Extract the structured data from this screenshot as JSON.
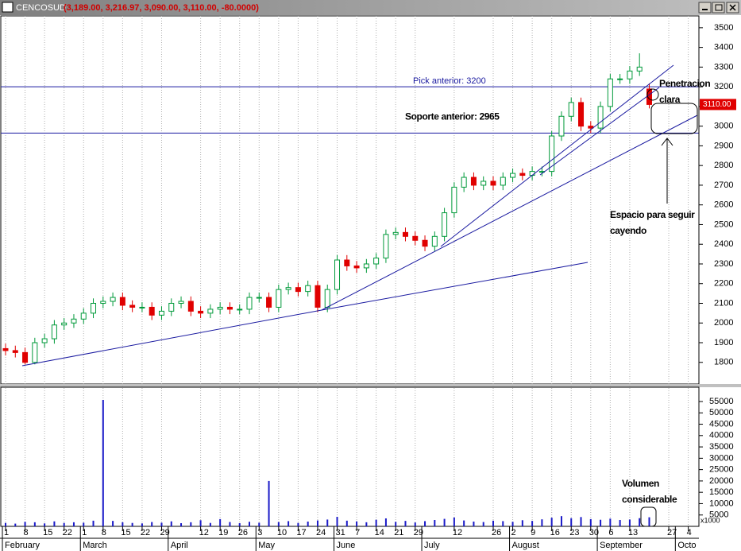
{
  "chart_data": [
    {
      "type": "candlestick",
      "title": "CENCOSUD",
      "subtitle": "(3,189.00, 3,216.97, 3,090.00, 3,110.00, -80.0000)",
      "categories": [
        "1",
        null,
        "8",
        null,
        "15",
        null,
        "22",
        null,
        "1",
        null,
        "8",
        null,
        "15",
        null,
        "22",
        null,
        "29",
        null,
        null,
        null,
        "12",
        null,
        "19",
        null,
        "26",
        null,
        "3",
        null,
        "10",
        null,
        "17",
        null,
        "24",
        null,
        "31",
        null,
        "7",
        null,
        "14",
        null,
        "21",
        null,
        "29",
        null,
        null,
        null,
        "12",
        null,
        null,
        null,
        "26",
        null,
        "2",
        null,
        "9",
        null,
        "16",
        null,
        "23",
        null,
        "30",
        null,
        "6",
        null,
        "13",
        null,
        null,
        null,
        "27",
        null,
        "4",
        null
      ],
      "months": [
        "February",
        null,
        null,
        null,
        null,
        null,
        null,
        null,
        "March",
        null,
        null,
        null,
        null,
        null,
        null,
        null,
        null,
        "April",
        null,
        null,
        null,
        null,
        null,
        null,
        null,
        null,
        "May",
        null,
        null,
        null,
        null,
        null,
        null,
        null,
        "June",
        null,
        null,
        null,
        null,
        null,
        null,
        null,
        null,
        "July",
        null,
        null,
        null,
        null,
        null,
        null,
        null,
        null,
        "August",
        null,
        null,
        null,
        null,
        null,
        null,
        null,
        null,
        "September",
        null,
        null,
        null,
        null,
        null,
        null,
        null,
        "Octo",
        null,
        null
      ],
      "open": [
        1870,
        1860,
        1850,
        1800,
        1900,
        1920,
        1990,
        2000,
        2020,
        2050,
        2100,
        2110,
        2130,
        2090,
        2080,
        2080,
        2040,
        2060,
        2100,
        2110,
        2060,
        2050,
        2070,
        2080,
        2070,
        2070,
        2130,
        2130,
        2080,
        2170,
        2180,
        2160,
        2190,
        2080,
        2170,
        2320,
        2290,
        2280,
        2300,
        2330,
        2450,
        2460,
        2440,
        2420,
        2390,
        2440,
        2560,
        2690,
        2740,
        2700,
        2720,
        2700,
        2740,
        2760,
        2750,
        2770,
        2770,
        2950,
        3050,
        3120,
        3000,
        2990,
        3100,
        3240,
        3240,
        3280,
        3189,
        null,
        null,
        null,
        null,
        null
      ],
      "high": [
        1895,
        1885,
        1875,
        1925,
        1945,
        2015,
        2025,
        2045,
        2075,
        2125,
        2135,
        2155,
        2155,
        2115,
        2105,
        2105,
        2085,
        2125,
        2135,
        2135,
        2085,
        2095,
        2105,
        2105,
        2095,
        2155,
        2155,
        2155,
        2195,
        2205,
        2205,
        2215,
        2215,
        2195,
        2345,
        2345,
        2315,
        2325,
        2355,
        2475,
        2485,
        2485,
        2465,
        2445,
        2465,
        2585,
        2715,
        2765,
        2765,
        2745,
        2745,
        2765,
        2785,
        2785,
        2795,
        2795,
        2975,
        3075,
        3145,
        3145,
        3025,
        3125,
        3265,
        3265,
        3305,
        3370,
        3216.97,
        null,
        null,
        null,
        null,
        null
      ],
      "low": [
        1835,
        1825,
        1790,
        1790,
        1875,
        1895,
        1965,
        1975,
        1995,
        2025,
        2075,
        2085,
        2065,
        2055,
        2055,
        2015,
        2015,
        2035,
        2075,
        2035,
        2025,
        2025,
        2045,
        2045,
        2045,
        2045,
        2105,
        2055,
        2055,
        2145,
        2135,
        2135,
        2055,
        2055,
        2145,
        2265,
        2255,
        2255,
        2275,
        2305,
        2425,
        2415,
        2395,
        2365,
        2365,
        2415,
        2535,
        2665,
        2675,
        2675,
        2675,
        2675,
        2715,
        2725,
        2725,
        2745,
        2745,
        2925,
        3025,
        2975,
        2965,
        2965,
        3075,
        3215,
        3215,
        3255,
        3090,
        null,
        null,
        null,
        null,
        null
      ],
      "close": [
        1860,
        1850,
        1800,
        1900,
        1920,
        1990,
        2000,
        2020,
        2050,
        2100,
        2110,
        2130,
        2090,
        2080,
        2080,
        2040,
        2060,
        2100,
        2110,
        2060,
        2050,
        2070,
        2080,
        2070,
        2070,
        2130,
        2130,
        2080,
        2170,
        2180,
        2160,
        2190,
        2080,
        2170,
        2320,
        2290,
        2280,
        2300,
        2330,
        2450,
        2460,
        2440,
        2420,
        2390,
        2440,
        2560,
        2690,
        2740,
        2700,
        2720,
        2700,
        2740,
        2760,
        2750,
        2770,
        2770,
        2950,
        3050,
        3120,
        3000,
        2990,
        3100,
        3240,
        3240,
        3280,
        3300,
        3110,
        null,
        null,
        null,
        null,
        null
      ],
      "up_color": "#009a3a",
      "down_color": "#e00000",
      "ylim": [
        1690,
        3560
      ],
      "yticks": [
        1800,
        1900,
        2000,
        2100,
        2200,
        2300,
        2400,
        2500,
        2600,
        2700,
        2800,
        2900,
        3000,
        3100,
        3200,
        3300,
        3400,
        3500
      ],
      "last_label": "3110.00",
      "hlines": [
        {
          "label": "Pick anterior: 3200",
          "value": 3200
        },
        {
          "label": "Soporte anterior: 2965",
          "value": 2965
        }
      ],
      "annotations": [
        "Penetracion",
        "clara",
        "Espacio para seguir",
        "cayendo",
        "Volumen",
        "considerable"
      ]
    },
    {
      "type": "bar",
      "values": [
        1500,
        1200,
        2000,
        1800,
        1300,
        2200,
        1500,
        1800,
        1600,
        2500,
        55700,
        2400,
        1800,
        1500,
        1300,
        1900,
        1600,
        2200,
        1400,
        1800,
        2700,
        1500,
        3200,
        1900,
        1400,
        2000,
        1600,
        20000,
        1900,
        2300,
        1500,
        2100,
        2600,
        3000,
        4200,
        2500,
        2200,
        1800,
        2900,
        3500,
        2000,
        2400,
        1700,
        2300,
        2800,
        3300,
        3900,
        2600,
        2100,
        1900,
        2500,
        2300,
        2000,
        2700,
        2400,
        3100,
        3800,
        4500,
        3600,
        4100,
        3200,
        2900,
        3400,
        2800,
        3000,
        3600,
        4000,
        null,
        null,
        null,
        null,
        null
      ],
      "color": "#1a1ac8",
      "ylim": [
        0,
        61300
      ],
      "yticks": [
        5000,
        10000,
        15000,
        20000,
        25000,
        30000,
        35000,
        40000,
        45000,
        50000,
        55000
      ],
      "unit_label": "x1000"
    }
  ]
}
